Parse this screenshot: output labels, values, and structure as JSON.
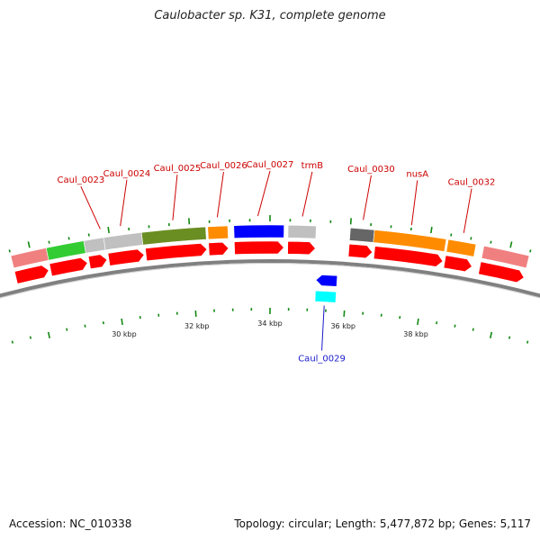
{
  "header": {
    "title": "Caulobacter sp. K31, complete genome"
  },
  "footer": {
    "accession_label": "Accession: NC_010338",
    "summary_label": "Topology: circular; Length: 5,477,872 bp; Genes: 5,117"
  },
  "genome_map": {
    "start_kbp": 28,
    "end_kbp": 40,
    "scale_labels": [
      "30 kbp",
      "32 kbp",
      "34 kbp",
      "36 kbp",
      "38 kbp"
    ],
    "scale_positions_kbp": [
      30,
      32,
      34,
      36,
      38
    ],
    "colors": {
      "backbone": "#808080",
      "cds_forward": "#ff0000",
      "cds_reverse_outer": "#0000ff",
      "cds_reverse_inner": "#00ffff",
      "label_red": "#cc0000",
      "label_blue": "#1a1acc",
      "ticks": "#118811"
    },
    "cog_track": [
      {
        "start": 27.5,
        "end": 28.4,
        "color": "#f08080"
      },
      {
        "start": 28.4,
        "end": 29.35,
        "color": "#33cc33"
      },
      {
        "start": 29.35,
        "end": 29.85,
        "color": "#c0c0c0"
      },
      {
        "start": 29.85,
        "end": 30.8,
        "color": "#c0c0c0"
      },
      {
        "start": 30.8,
        "end": 32.4,
        "color": "#6b8e23"
      },
      {
        "start": 32.45,
        "end": 32.95,
        "color": "#ff8c00"
      },
      {
        "start": 33.1,
        "end": 34.35,
        "color": "#0000ff"
      },
      {
        "start": 34.45,
        "end": 35.15,
        "color": "#c0c0c0"
      },
      {
        "start": 36.0,
        "end": 36.6,
        "color": "#666666"
      },
      {
        "start": 36.6,
        "end": 38.4,
        "color": "#ff8c00"
      },
      {
        "start": 38.45,
        "end": 39.15,
        "color": "#ff8c00"
      },
      {
        "start": 39.35,
        "end": 40.5,
        "color": "#f08080"
      }
    ],
    "forward_cds": [
      {
        "start": 27.5,
        "end": 28.35
      },
      {
        "start": 28.4,
        "end": 29.35
      },
      {
        "start": 29.4,
        "end": 29.85
      },
      {
        "start": 29.9,
        "end": 30.8
      },
      {
        "start": 30.85,
        "end": 32.4
      },
      {
        "start": 32.45,
        "end": 32.95
      },
      {
        "start": 33.1,
        "end": 34.35
      },
      {
        "start": 34.45,
        "end": 35.15
      },
      {
        "start": 36.0,
        "end": 36.6
      },
      {
        "start": 36.65,
        "end": 38.4
      },
      {
        "start": 38.45,
        "end": 39.15
      },
      {
        "start": 39.35,
        "end": 40.5
      }
    ],
    "reverse_cds": [
      {
        "start": 35.2,
        "end": 35.75,
        "track": "outer",
        "color": "#0000ff"
      },
      {
        "start": 35.2,
        "end": 35.75,
        "track": "inner",
        "color": "#00ffff"
      }
    ],
    "gene_labels": [
      {
        "text": "Caul_0023",
        "pos": 29.8,
        "label_pos": 29.5,
        "strand": "forward"
      },
      {
        "text": "Caul_0024",
        "pos": 30.3,
        "label_pos": 30.6,
        "strand": "forward"
      },
      {
        "text": "Caul_0025",
        "pos": 31.6,
        "label_pos": 31.8,
        "strand": "forward"
      },
      {
        "text": "Caul_0026",
        "pos": 32.7,
        "label_pos": 32.9,
        "strand": "forward"
      },
      {
        "text": "Caul_0027",
        "pos": 33.7,
        "label_pos": 34.0,
        "strand": "forward"
      },
      {
        "text": "trmB",
        "pos": 34.8,
        "label_pos": 35.0,
        "strand": "forward"
      },
      {
        "text": "Caul_0030",
        "pos": 36.3,
        "label_pos": 36.4,
        "strand": "forward"
      },
      {
        "text": "nusA",
        "pos": 37.5,
        "label_pos": 37.5,
        "strand": "forward"
      },
      {
        "text": "Caul_0032",
        "pos": 38.8,
        "label_pos": 38.8,
        "strand": "forward"
      },
      {
        "text": "Caul_0029",
        "pos": 35.45,
        "label_pos": 35.45,
        "strand": "reverse"
      }
    ]
  }
}
